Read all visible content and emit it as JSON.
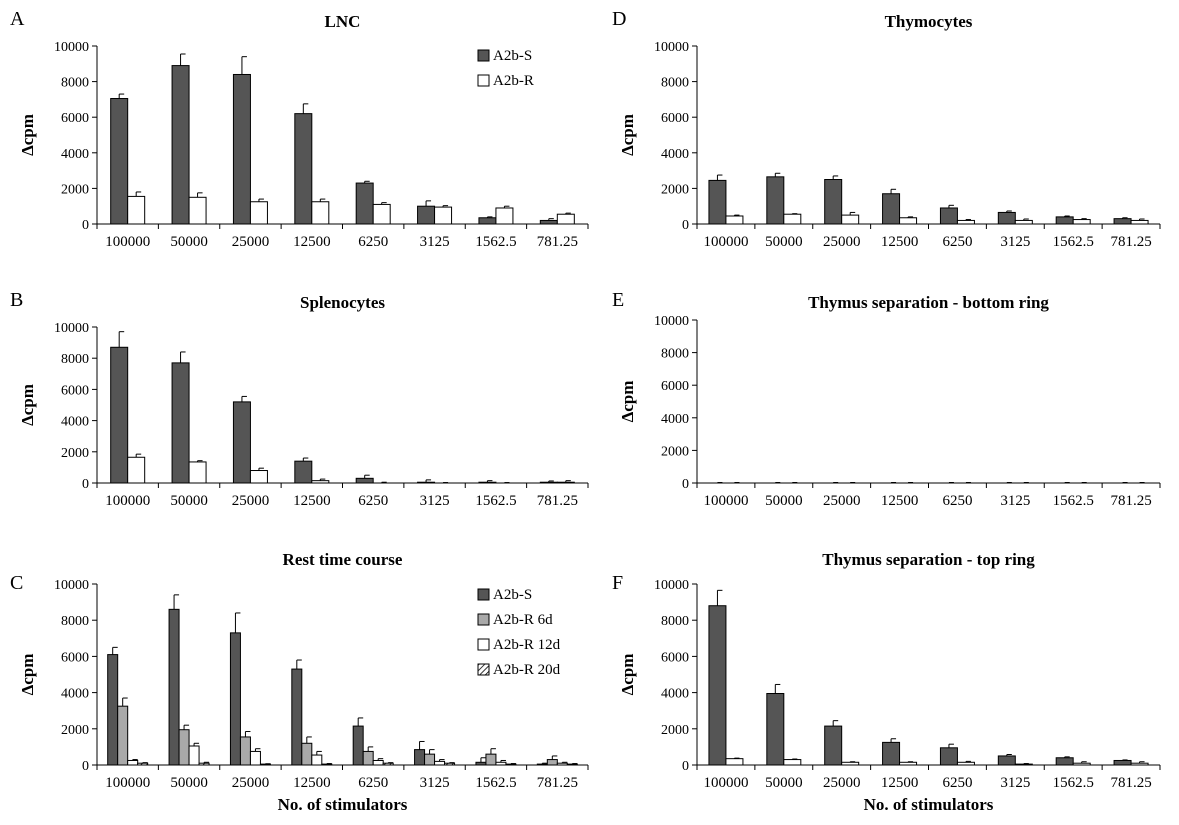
{
  "figure": {
    "panel_letters": [
      "A",
      "B",
      "C",
      "D",
      "E",
      "F"
    ],
    "x_axis_title": "No. of stimulators"
  },
  "colors": {
    "A2b-S": "#555555",
    "A2b-R 6d": "#a9a9a9",
    "A2b-R": "#ffffff",
    "A2b-R 12d": "#ffffff",
    "A2b-R 20d": "hatched"
  },
  "chart_data": [
    {
      "panel": "A",
      "type": "bar",
      "title": "LNC",
      "xlabel": "",
      "ylabel": "Δcpm",
      "ylim": [
        0,
        10000
      ],
      "yticks": [
        "0",
        "2000",
        "4000",
        "6000",
        "8000",
        "10000"
      ],
      "categories": [
        "100000",
        "50000",
        "25000",
        "12500",
        "6250",
        "3125",
        "1562.5",
        "781.25"
      ],
      "legend": "top-right",
      "series": [
        {
          "name": "A2b-S",
          "values": [
            7050,
            8900,
            8400,
            6200,
            2300,
            1000,
            350,
            200
          ],
          "errors": [
            250,
            650,
            1000,
            550,
            100,
            300,
            50,
            100
          ]
        },
        {
          "name": "A2b-R",
          "values": [
            1550,
            1500,
            1250,
            1250,
            1100,
            950,
            900,
            550
          ],
          "errors": [
            250,
            250,
            150,
            150,
            100,
            80,
            100,
            60
          ]
        }
      ]
    },
    {
      "panel": "B",
      "type": "bar",
      "title": "Splenocytes",
      "xlabel": "",
      "ylabel": "Δcpm",
      "ylim": [
        0,
        10000
      ],
      "yticks": [
        "0",
        "2000",
        "4000",
        "6000",
        "8000",
        "10000"
      ],
      "categories": [
        "100000",
        "50000",
        "25000",
        "12500",
        "6250",
        "3125",
        "1562.5",
        "781.25"
      ],
      "series": [
        {
          "name": "",
          "values": [
            8700,
            7700,
            5200,
            1400,
            300,
            50,
            50,
            50
          ],
          "errors": [
            1000,
            700,
            350,
            200,
            200,
            150,
            100,
            80
          ]
        },
        {
          "name": "",
          "values": [
            1650,
            1350,
            800,
            150,
            0,
            0,
            0,
            50
          ],
          "errors": [
            200,
            80,
            150,
            100,
            50,
            30,
            30,
            100
          ]
        }
      ]
    },
    {
      "panel": "C",
      "type": "bar",
      "title": "Rest time course",
      "xlabel": "No. of stimulators",
      "ylabel": "Δcpm",
      "ylim": [
        0,
        10000
      ],
      "yticks": [
        "0",
        "2000",
        "4000",
        "6000",
        "8000",
        "10000"
      ],
      "categories": [
        "100000",
        "50000",
        "25000",
        "12500",
        "6250",
        "3125",
        "1562.5",
        "781.25"
      ],
      "legend": "top-right",
      "series": [
        {
          "name": "A2b-S",
          "values": [
            6100,
            8600,
            7300,
            5300,
            2150,
            850,
            150,
            50
          ],
          "errors": [
            400,
            800,
            1100,
            500,
            450,
            450,
            250,
            50
          ]
        },
        {
          "name": "A2b-R 6d",
          "values": [
            3250,
            1950,
            1550,
            1200,
            750,
            600,
            600,
            300
          ],
          "errors": [
            450,
            250,
            300,
            350,
            250,
            250,
            300,
            200
          ]
        },
        {
          "name": "A2b-R 12d",
          "values": [
            250,
            1050,
            750,
            550,
            250,
            200,
            150,
            100
          ],
          "errors": [
            50,
            150,
            150,
            200,
            100,
            100,
            100,
            50
          ]
        },
        {
          "name": "A2b-R 20d",
          "values": [
            100,
            100,
            50,
            50,
            100,
            100,
            50,
            50
          ],
          "errors": [
            30,
            50,
            20,
            30,
            30,
            30,
            30,
            30
          ]
        }
      ]
    },
    {
      "panel": "D",
      "type": "bar",
      "title": "Thymocytes",
      "xlabel": "",
      "ylabel": "Δcpm",
      "ylim": [
        0,
        10000
      ],
      "yticks": [
        "0",
        "2000",
        "4000",
        "6000",
        "8000",
        "10000"
      ],
      "categories": [
        "100000",
        "50000",
        "25000",
        "12500",
        "6250",
        "3125",
        "1562.5",
        "781.25"
      ],
      "series": [
        {
          "name": "",
          "values": [
            2450,
            2650,
            2500,
            1700,
            900,
            650,
            400,
            300
          ],
          "errors": [
            300,
            200,
            200,
            250,
            150,
            80,
            50,
            50
          ]
        },
        {
          "name": "",
          "values": [
            450,
            550,
            500,
            350,
            200,
            200,
            250,
            200
          ],
          "errors": [
            50,
            30,
            150,
            50,
            50,
            80,
            50,
            80
          ]
        }
      ]
    },
    {
      "panel": "E",
      "type": "bar",
      "title": "Thymus separation - bottom ring",
      "xlabel": "",
      "ylabel": "Δcpm",
      "ylim": [
        0,
        10000
      ],
      "yticks": [
        "0",
        "2000",
        "4000",
        "6000",
        "8000",
        "10000"
      ],
      "categories": [
        "100000",
        "50000",
        "25000",
        "12500",
        "6250",
        "3125",
        "1562.5",
        "781.25"
      ],
      "series": [
        {
          "name": "",
          "values": [
            0,
            0,
            0,
            0,
            0,
            0,
            0,
            0
          ],
          "errors": [
            30,
            30,
            30,
            30,
            30,
            30,
            30,
            30
          ]
        },
        {
          "name": "",
          "values": [
            0,
            0,
            0,
            0,
            0,
            0,
            0,
            0
          ],
          "errors": [
            30,
            30,
            30,
            30,
            30,
            30,
            30,
            30
          ]
        }
      ]
    },
    {
      "panel": "F",
      "type": "bar",
      "title": "Thymus separation - top ring",
      "xlabel": "No. of stimulators",
      "ylabel": "Δcpm",
      "ylim": [
        0,
        10000
      ],
      "yticks": [
        "0",
        "2000",
        "4000",
        "6000",
        "8000",
        "10000"
      ],
      "categories": [
        "100000",
        "50000",
        "25000",
        "12500",
        "6250",
        "3125",
        "1562.5",
        "781.25"
      ],
      "series": [
        {
          "name": "",
          "values": [
            8800,
            3950,
            2150,
            1250,
            950,
            500,
            400,
            250
          ],
          "errors": [
            850,
            500,
            300,
            200,
            200,
            80,
            50,
            30
          ]
        },
        {
          "name": "",
          "values": [
            350,
            300,
            150,
            150,
            150,
            50,
            100,
            100
          ],
          "errors": [
            30,
            30,
            30,
            30,
            50,
            30,
            80,
            80
          ]
        }
      ]
    }
  ]
}
